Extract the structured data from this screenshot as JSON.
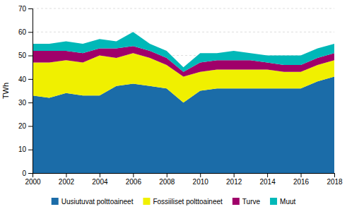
{
  "chart_data": {
    "type": "area",
    "stacked": true,
    "x": [
      2000,
      2001,
      2002,
      2003,
      2004,
      2005,
      2006,
      2007,
      2008,
      2009,
      2010,
      2011,
      2012,
      2013,
      2014,
      2015,
      2016,
      2017,
      2018
    ],
    "series": [
      {
        "name": "Uusiutuvat polttoaineet",
        "color": "#1b6ca8",
        "values": [
          33,
          32,
          34,
          33,
          33,
          37,
          38,
          37,
          36,
          30,
          35,
          36,
          36,
          36,
          36,
          36,
          36,
          39,
          41
        ]
      },
      {
        "name": "Fossiiliset polttoaineet",
        "color": "#f0f000",
        "values": [
          14,
          15,
          14,
          14,
          17,
          12,
          13,
          12,
          10,
          11,
          8,
          8,
          8,
          8,
          8,
          7,
          7,
          7,
          7
        ]
      },
      {
        "name": "Turve",
        "color": "#a0006a",
        "values": [
          5,
          5,
          4,
          4,
          3,
          4,
          3,
          3,
          3,
          2,
          4,
          4,
          4,
          4,
          3,
          3,
          3,
          3,
          3
        ]
      },
      {
        "name": "Muut",
        "color": "#00b8b8",
        "values": [
          3,
          3,
          4,
          4,
          4,
          3,
          6,
          3,
          3,
          2,
          4,
          3,
          4,
          3,
          3,
          4,
          4,
          4,
          4
        ]
      }
    ],
    "ylabel": "TWh",
    "xlim": [
      2000,
      2018
    ],
    "xticks": [
      2000,
      2002,
      2004,
      2006,
      2008,
      2010,
      2012,
      2014,
      2016,
      2018
    ],
    "ylim": [
      0,
      70
    ],
    "yticks": [
      0,
      10,
      20,
      30,
      40,
      50,
      60,
      70
    ],
    "grid": true,
    "legend": "bottom"
  }
}
